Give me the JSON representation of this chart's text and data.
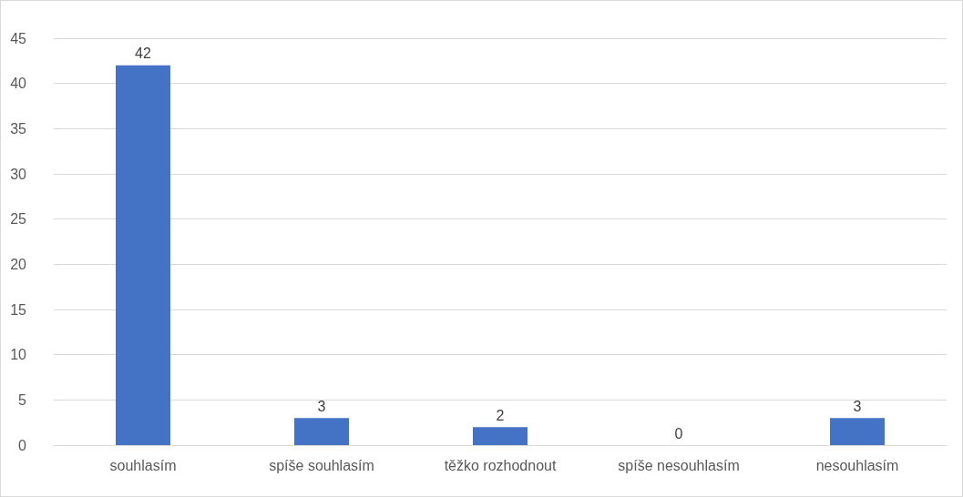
{
  "chart_data": {
    "type": "bar",
    "categories": [
      "souhlasím",
      "spíše souhlasím",
      "těžko rozhodnout",
      "spíše nesouhlasím",
      "nesouhlasím"
    ],
    "values": [
      42,
      3,
      2,
      0,
      3
    ],
    "color": "#4472c4",
    "ylim": [
      0,
      45
    ],
    "yticks": [
      0,
      5,
      10,
      15,
      20,
      25,
      30,
      35,
      40,
      45
    ],
    "grid": "y",
    "data_labels": true
  }
}
